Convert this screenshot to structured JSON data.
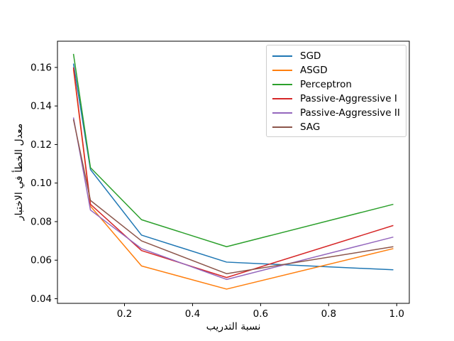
{
  "chart_data": {
    "type": "line",
    "title": "",
    "xlabel": "نسبة التدريب",
    "ylabel": "معدل الخطأ في الاختبار",
    "x": [
      0.05,
      0.1,
      0.25,
      0.5,
      0.99
    ],
    "series": [
      {
        "name": "SGD",
        "color": "#1f77b4",
        "values": [
          0.162,
          0.107,
          0.073,
          0.059,
          0.055
        ]
      },
      {
        "name": "ASGD",
        "color": "#ff7f0e",
        "values": [
          0.159,
          0.088,
          0.057,
          0.045,
          0.066
        ]
      },
      {
        "name": "Perceptron",
        "color": "#2ca02c",
        "values": [
          0.167,
          0.108,
          0.081,
          0.067,
          0.089
        ]
      },
      {
        "name": "Passive-Aggressive I",
        "color": "#d62728",
        "values": [
          0.16,
          0.089,
          0.065,
          0.051,
          0.078
        ]
      },
      {
        "name": "Passive-Aggressive II",
        "color": "#9467bd",
        "values": [
          0.134,
          0.086,
          0.066,
          0.05,
          0.072
        ]
      },
      {
        "name": "SAG",
        "color": "#8c564b",
        "values": [
          0.133,
          0.091,
          0.07,
          0.053,
          0.067
        ]
      }
    ],
    "xlim": [
      0.003,
      1.037
    ],
    "ylim": [
      0.0376,
      0.1736
    ],
    "x_ticks": {
      "values": [
        0.2,
        0.4,
        0.6,
        0.8,
        1.0
      ],
      "labels": [
        "0.2",
        "0.4",
        "0.6",
        "0.8",
        "1.0"
      ]
    },
    "y_ticks": {
      "values": [
        0.04,
        0.06,
        0.08,
        0.1,
        0.12,
        0.14,
        0.16
      ],
      "labels": [
        "0.04",
        "0.06",
        "0.08",
        "0.10",
        "0.12",
        "0.14",
        "0.16"
      ]
    },
    "grid": false,
    "legend_position": "upper right",
    "line_width": 1.5,
    "axis_color": "#000000",
    "background_color": "#ffffff",
    "legend_border_color": "#cccccc"
  }
}
